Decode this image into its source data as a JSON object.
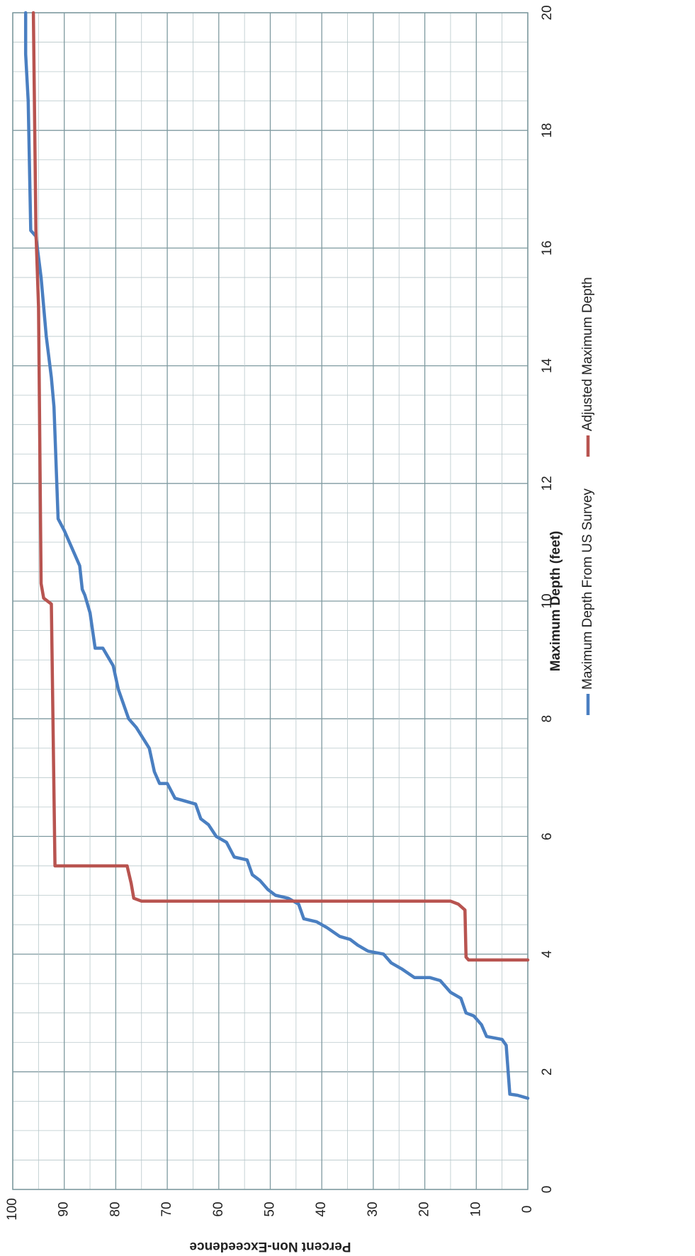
{
  "chart_data": {
    "type": "line",
    "orientation": "rotated 90 degrees clockwise",
    "title": "",
    "xlabel": "Maximum Depth (feet)",
    "ylabel": "Percent Non-Exceedence",
    "xlim": [
      0,
      20
    ],
    "ylim": [
      0,
      100
    ],
    "x_ticks": [
      "0",
      "2",
      "4",
      "6",
      "8",
      "10",
      "12",
      "14",
      "16",
      "18",
      "20"
    ],
    "y_ticks": [
      "0",
      "10",
      "20",
      "30",
      "40",
      "50",
      "60",
      "70",
      "80",
      "90",
      "100"
    ],
    "grid": true,
    "legend_position": "bottom",
    "series": [
      {
        "name": "Maximum Depth From US Survey",
        "color": "#4a7fc1",
        "points": [
          [
            1.55,
            0
          ],
          [
            1.6,
            2
          ],
          [
            1.62,
            3.5
          ],
          [
            2.45,
            4.2
          ],
          [
            2.55,
            5
          ],
          [
            2.6,
            8
          ],
          [
            2.8,
            9
          ],
          [
            2.95,
            10.5
          ],
          [
            3.0,
            12
          ],
          [
            3.25,
            13
          ],
          [
            3.35,
            15
          ],
          [
            3.55,
            17
          ],
          [
            3.6,
            19
          ],
          [
            3.6,
            22
          ],
          [
            3.75,
            24.5
          ],
          [
            3.85,
            26.5
          ],
          [
            4.0,
            28
          ],
          [
            4.05,
            31
          ],
          [
            4.15,
            33
          ],
          [
            4.25,
            34.5
          ],
          [
            4.3,
            36.5
          ],
          [
            4.45,
            39
          ],
          [
            4.55,
            41
          ],
          [
            4.6,
            43.5
          ],
          [
            4.85,
            44.5
          ],
          [
            4.95,
            46.5
          ],
          [
            5.0,
            49
          ],
          [
            5.1,
            50.5
          ],
          [
            5.25,
            52
          ],
          [
            5.35,
            53.5
          ],
          [
            5.6,
            54.5
          ],
          [
            5.65,
            57
          ],
          [
            5.9,
            58.5
          ],
          [
            6.0,
            60.5
          ],
          [
            6.2,
            62
          ],
          [
            6.3,
            63.5
          ],
          [
            6.55,
            64.5
          ],
          [
            6.65,
            68.5
          ],
          [
            6.9,
            70
          ],
          [
            6.9,
            71.5
          ],
          [
            7.1,
            72.5
          ],
          [
            7.5,
            73.5
          ],
          [
            7.85,
            76
          ],
          [
            8.0,
            77.5
          ],
          [
            8.5,
            79.5
          ],
          [
            8.9,
            80.5
          ],
          [
            9.2,
            82.5
          ],
          [
            9.2,
            84
          ],
          [
            9.5,
            84.5
          ],
          [
            9.8,
            85
          ],
          [
            10.1,
            86
          ],
          [
            10.2,
            86.5
          ],
          [
            10.6,
            87
          ],
          [
            10.9,
            88.5
          ],
          [
            11.2,
            90
          ],
          [
            11.4,
            91.2
          ],
          [
            13.3,
            92
          ],
          [
            13.8,
            92.5
          ],
          [
            14.5,
            93.5
          ],
          [
            15.5,
            94.5
          ],
          [
            16.2,
            95.5
          ],
          [
            16.3,
            96.5
          ],
          [
            18.5,
            97
          ],
          [
            19.3,
            97.5
          ],
          [
            20.0,
            97.5
          ]
        ]
      },
      {
        "name": "Adjusted Maximum Depth",
        "color": "#b85450",
        "points": [
          [
            3.9,
            0
          ],
          [
            3.9,
            11.5
          ],
          [
            3.95,
            12
          ],
          [
            4.75,
            12.2
          ],
          [
            4.85,
            13.5
          ],
          [
            4.9,
            15
          ],
          [
            4.9,
            75
          ],
          [
            4.95,
            76.5
          ],
          [
            5.2,
            77
          ],
          [
            5.5,
            77.8
          ],
          [
            5.5,
            91.8
          ],
          [
            9.95,
            92.5
          ],
          [
            10.05,
            94
          ],
          [
            10.3,
            94.5
          ],
          [
            15.0,
            95
          ],
          [
            16.3,
            95.5
          ],
          [
            20.0,
            96
          ]
        ]
      }
    ]
  }
}
